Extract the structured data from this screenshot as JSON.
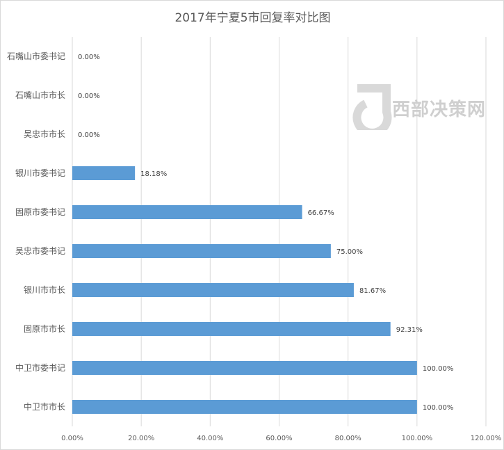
{
  "chart_data": {
    "type": "bar",
    "orientation": "horizontal",
    "title": "2017年宁夏5市回复率对比图",
    "categories": [
      "石嘴山市委书记",
      "石嘴山市市长",
      "吴忠市市长",
      "银川市委书记",
      "固原市委书记",
      "吴忠市委书记",
      "银川市市长",
      "固原市市长",
      "中卫市委书记",
      "中卫市市长"
    ],
    "values": [
      0,
      0,
      0,
      18.18,
      66.67,
      75.0,
      81.67,
      92.31,
      100.0,
      100.0
    ],
    "data_labels": [
      "0.00%",
      "0.00%",
      "0.00%",
      "18.18%",
      "66.67%",
      "75.00%",
      "81.67%",
      "92.31%",
      "100.00%",
      "100.00%"
    ],
    "xlim": [
      0,
      120
    ],
    "xticks": [
      "0.00%",
      "20.00%",
      "40.00%",
      "60.00%",
      "80.00%",
      "100.00%",
      "120.00%"
    ],
    "grid": true,
    "legend": "none",
    "bar_color": "#5B9BD5"
  },
  "watermark": {
    "text": "西部决策网"
  }
}
